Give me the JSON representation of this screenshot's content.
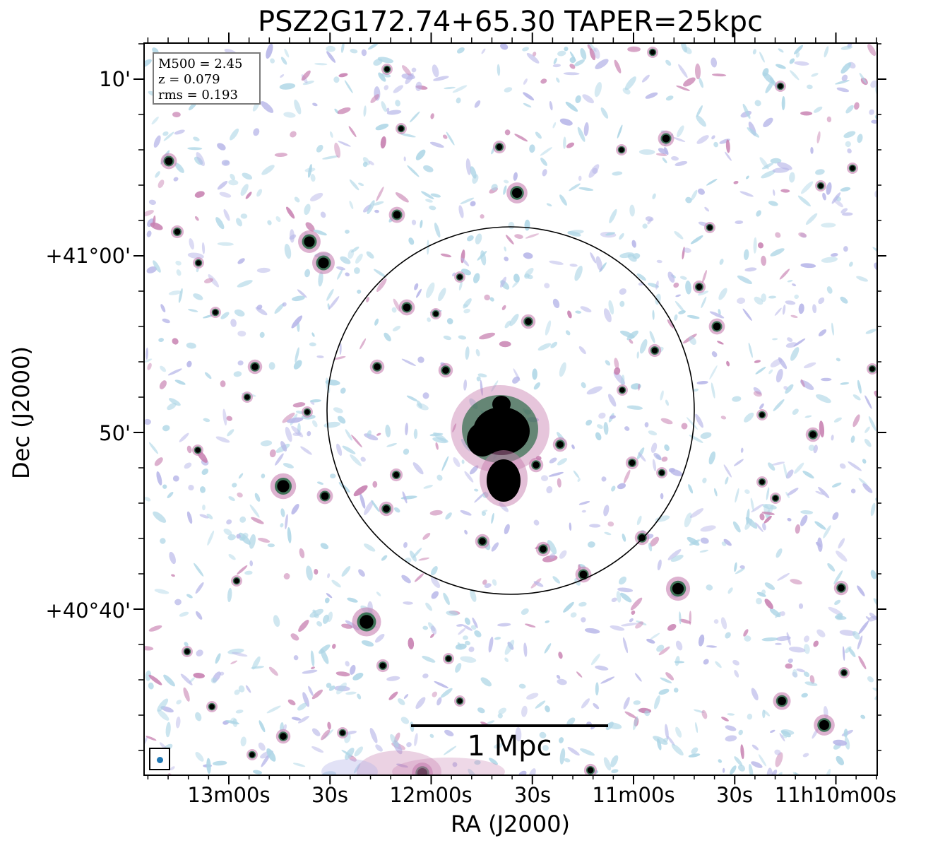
{
  "title": "PSZ2G172.74+65.30 TAPER=25kpc",
  "axes": {
    "xlabel": "RA (J2000)",
    "ylabel": "Dec (J2000)",
    "xticks": [
      "13m00s",
      "30s",
      "12m00s",
      "30s",
      "11m00s",
      "30s",
      "11h10m00s"
    ],
    "yticks": [
      "10'",
      "+41°00'",
      "50'",
      "+40°40'"
    ]
  },
  "stats": {
    "line1": "M500 = 2.45",
    "line2": "z = 0.079",
    "line3": "rms = 0.193"
  },
  "scalebar": {
    "label": "1 Mpc"
  },
  "colors": {
    "faint": "#aed6e6",
    "low": "#b7b6e8",
    "mid": "#c77fb0",
    "high": "#2e6b4a",
    "peak": "#000000",
    "beam": "#1f77b4"
  }
}
